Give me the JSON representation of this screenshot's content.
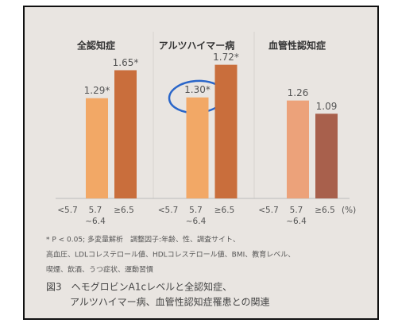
{
  "chart_data": {
    "type": "grouped-bar",
    "groups": [
      "全認知症",
      "アルツハイマー病",
      "血管性認知症"
    ],
    "categories": [
      [
        "<5.7"
      ],
      [
        "5.7",
        "~6.4"
      ],
      [
        "≥6.5"
      ]
    ],
    "x_unit": "(%)",
    "ylim": [
      0,
      1.9
    ],
    "series": [
      {
        "name": "全認知症",
        "colors": [
          null,
          "#f2a866",
          "#c96e3c"
        ],
        "values": [
          null,
          1.29,
          1.65
        ],
        "value_labels": [
          null,
          "1.29*",
          "1.65*"
        ]
      },
      {
        "name": "アルツハイマー病",
        "colors": [
          null,
          "#f2a866",
          "#c96e3c"
        ],
        "values": [
          null,
          1.3,
          1.72
        ],
        "value_labels": [
          null,
          "1.30*",
          "1.72*"
        ]
      },
      {
        "name": "血管性認知症",
        "colors": [
          null,
          "#eca27a",
          "#a8604c"
        ],
        "values": [
          null,
          1.26,
          1.09
        ],
        "value_labels": [
          null,
          "1.26",
          "1.09"
        ]
      }
    ],
    "footnotes": [
      "* P < 0.05; 多変量解析　調整因子:年齢、性、調査サイト、",
      "高血圧、LDLコレステロール値、HDLコレステロール値、BMI、教育レベル、",
      "喫煙、飲酒、うつ症状、運動習慣"
    ],
    "caption": [
      "図3　ヘモグロビンA1cレベルと全認知症、",
      "アルツハイマー病、血管性認知症罹患との関連"
    ]
  }
}
